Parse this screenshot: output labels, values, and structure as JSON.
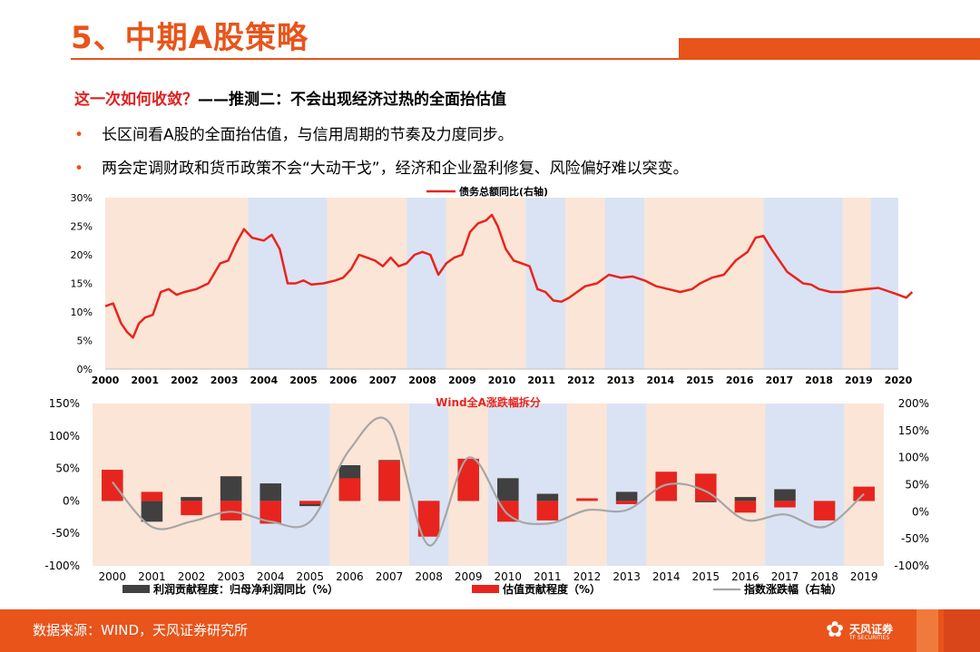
{
  "header": {
    "title": "5、中期A股策略"
  },
  "subtitle": {
    "red": "这一次如何收敛？",
    "black": "——推测二：不会出现经济过热的全面抬估值"
  },
  "bullets": [
    {
      "dot": "•",
      "text": "长区间看A股的全面抬估值，与信用周期的节奏及力度同步。"
    },
    {
      "dot": "•",
      "text": "两会定调财政和货币政策不会“大动干戈”，经济和企业盈利修复、风险偏好难以突变。"
    }
  ],
  "footer": {
    "source": "数据来源：WIND，天风证券研究所",
    "logo_name": "天风证券",
    "logo_sub": "TF SECURITIES"
  },
  "colors": {
    "accent": "#e8541a",
    "red": "#e8241e",
    "dark": "#404040",
    "gray": "#a6a6a6",
    "band_orange": "#fbe5d6",
    "band_blue": "#dae3f3"
  },
  "chart_data": [
    {
      "type": "line",
      "title": "",
      "legend": [
        "债务总额同比(右轴)"
      ],
      "legend_position": "top-center",
      "x_labels": [
        "2000",
        "2001",
        "2002",
        "2003",
        "2004",
        "2005",
        "2006",
        "2007",
        "2008",
        "2009",
        "2010",
        "2011",
        "2012",
        "2013",
        "2014",
        "2015",
        "2016",
        "2017",
        "2018",
        "2019",
        "2020"
      ],
      "y_ticks": [
        "30%",
        "25%",
        "20%",
        "15%",
        "10%",
        "5%",
        "0%"
      ],
      "ylim": [
        0,
        30
      ],
      "xlim": [
        2000,
        2020
      ],
      "bands": [
        {
          "from": 2000,
          "to": 2003.6,
          "color": "orange"
        },
        {
          "from": 2003.6,
          "to": 2005.6,
          "color": "blue"
        },
        {
          "from": 2005.6,
          "to": 2007.6,
          "color": "orange"
        },
        {
          "from": 2007.6,
          "to": 2008.6,
          "color": "blue"
        },
        {
          "from": 2008.6,
          "to": 2010.6,
          "color": "orange"
        },
        {
          "from": 2010.6,
          "to": 2011.6,
          "color": "blue"
        },
        {
          "from": 2011.6,
          "to": 2012.6,
          "color": "orange"
        },
        {
          "from": 2012.6,
          "to": 2013.6,
          "color": "blue"
        },
        {
          "from": 2013.6,
          "to": 2016.6,
          "color": "orange"
        },
        {
          "from": 2016.6,
          "to": 2018.6,
          "color": "blue"
        },
        {
          "from": 2018.6,
          "to": 2019.3,
          "color": "orange"
        },
        {
          "from": 2019.3,
          "to": 2020,
          "color": "blue"
        }
      ],
      "series": [
        {
          "name": "债务总额同比(右轴)",
          "points": [
            [
              2000,
              11
            ],
            [
              2000.2,
              11.5
            ],
            [
              2000.4,
              8
            ],
            [
              2000.55,
              6.5
            ],
            [
              2000.7,
              5.5
            ],
            [
              2000.85,
              8
            ],
            [
              2001,
              9
            ],
            [
              2001.2,
              9.5
            ],
            [
              2001.4,
              13.5
            ],
            [
              2001.6,
              14
            ],
            [
              2001.8,
              13
            ],
            [
              2002,
              13.5
            ],
            [
              2002.3,
              14
            ],
            [
              2002.6,
              15
            ],
            [
              2002.9,
              18.5
            ],
            [
              2003.1,
              19
            ],
            [
              2003.3,
              22
            ],
            [
              2003.5,
              24.5
            ],
            [
              2003.7,
              23
            ],
            [
              2004,
              22.5
            ],
            [
              2004.2,
              23.5
            ],
            [
              2004.4,
              21
            ],
            [
              2004.6,
              15
            ],
            [
              2004.8,
              15
            ],
            [
              2005,
              15.5
            ],
            [
              2005.2,
              14.8
            ],
            [
              2005.5,
              15
            ],
            [
              2005.8,
              15.5
            ],
            [
              2006,
              16
            ],
            [
              2006.2,
              17.5
            ],
            [
              2006.4,
              20
            ],
            [
              2006.6,
              19.5
            ],
            [
              2006.8,
              19
            ],
            [
              2007,
              18
            ],
            [
              2007.2,
              19.5
            ],
            [
              2007.4,
              18
            ],
            [
              2007.6,
              18.5
            ],
            [
              2007.8,
              20
            ],
            [
              2008,
              20.5
            ],
            [
              2008.2,
              20
            ],
            [
              2008.4,
              16.5
            ],
            [
              2008.6,
              18.5
            ],
            [
              2008.8,
              19.5
            ],
            [
              2009,
              20
            ],
            [
              2009.2,
              24
            ],
            [
              2009.4,
              25.5
            ],
            [
              2009.6,
              26
            ],
            [
              2009.75,
              27
            ],
            [
              2009.9,
              25
            ],
            [
              2010.1,
              21
            ],
            [
              2010.3,
              19
            ],
            [
              2010.5,
              18.5
            ],
            [
              2010.7,
              18
            ],
            [
              2010.9,
              14
            ],
            [
              2011.1,
              13.5
            ],
            [
              2011.3,
              12
            ],
            [
              2011.5,
              11.8
            ],
            [
              2011.7,
              12.5
            ],
            [
              2011.9,
              13.5
            ],
            [
              2012.1,
              14.5
            ],
            [
              2012.4,
              15
            ],
            [
              2012.7,
              16.5
            ],
            [
              2013,
              16
            ],
            [
              2013.3,
              16.2
            ],
            [
              2013.6,
              15.5
            ],
            [
              2013.9,
              14.5
            ],
            [
              2014.2,
              14
            ],
            [
              2014.5,
              13.5
            ],
            [
              2014.8,
              14
            ],
            [
              2015,
              15
            ],
            [
              2015.3,
              16
            ],
            [
              2015.6,
              16.5
            ],
            [
              2015.9,
              19
            ],
            [
              2016.2,
              20.5
            ],
            [
              2016.4,
              23
            ],
            [
              2016.6,
              23.3
            ],
            [
              2016.8,
              21
            ],
            [
              2017,
              19
            ],
            [
              2017.2,
              17
            ],
            [
              2017.4,
              16
            ],
            [
              2017.6,
              15
            ],
            [
              2017.8,
              14.8
            ],
            [
              2018,
              14
            ],
            [
              2018.3,
              13.5
            ],
            [
              2018.6,
              13.5
            ],
            [
              2018.9,
              13.8
            ],
            [
              2019.2,
              14
            ],
            [
              2019.5,
              14.2
            ],
            [
              2019.8,
              13.5
            ],
            [
              2020,
              13
            ],
            [
              2020.2,
              12.5
            ],
            [
              2020.35,
              13.5
            ]
          ]
        }
      ]
    },
    {
      "type": "bar",
      "title": "Wind全A涨跌幅拆分",
      "categories": [
        "2000",
        "2001",
        "2002",
        "2003",
        "2004",
        "2005",
        "2006",
        "2007",
        "2008",
        "2009",
        "2010",
        "2011",
        "2012",
        "2013",
        "2014",
        "2015",
        "2016",
        "2017",
        "2018",
        "2019"
      ],
      "y_left_ticks": [
        "150%",
        "100%",
        "50%",
        "0%",
        "-50%",
        "-100%"
      ],
      "y_right_ticks": [
        "200%",
        "150%",
        "100%",
        "50%",
        "0%",
        "-50%",
        "-100%"
      ],
      "ylim_left": [
        -100,
        150
      ],
      "ylim_right": [
        -100,
        200
      ],
      "legend_position": "bottom",
      "bands": [
        {
          "from": 0,
          "to": 4,
          "color": "orange"
        },
        {
          "from": 4,
          "to": 6,
          "color": "blue"
        },
        {
          "from": 6,
          "to": 8,
          "color": "orange"
        },
        {
          "from": 8,
          "to": 9,
          "color": "blue"
        },
        {
          "from": 9,
          "to": 10,
          "color": "orange"
        },
        {
          "from": 10,
          "to": 12,
          "color": "blue"
        },
        {
          "from": 12,
          "to": 13,
          "color": "orange"
        },
        {
          "from": 13,
          "to": 14,
          "color": "blue"
        },
        {
          "from": 14,
          "to": 17,
          "color": "orange"
        },
        {
          "from": 17,
          "to": 19,
          "color": "blue"
        },
        {
          "from": 19,
          "to": 20,
          "color": "orange"
        }
      ],
      "series": [
        {
          "name": "利润贡献程度：归母净利润同比（%）",
          "axis": "left",
          "values": [
            6,
            -32,
            6,
            38,
            27,
            -8,
            55,
            63,
            -18,
            25,
            35,
            11,
            0,
            14,
            4,
            -2,
            6,
            18,
            0,
            8
          ]
        },
        {
          "name": "估值贡献程度（%）",
          "axis": "left",
          "values": [
            48,
            14,
            -22,
            -30,
            -35,
            -5,
            35,
            62,
            -55,
            65,
            -32,
            -30,
            4,
            -5,
            45,
            42,
            -18,
            -10,
            -30,
            22
          ]
        },
        {
          "name": "指数涨跌幅（右轴）",
          "axis": "right",
          "type": "line",
          "values": [
            55,
            -28,
            -18,
            0,
            -18,
            -18,
            115,
            165,
            -62,
            100,
            -5,
            -22,
            3,
            3,
            50,
            38,
            -15,
            -5,
            -28,
            33
          ]
        }
      ]
    }
  ]
}
